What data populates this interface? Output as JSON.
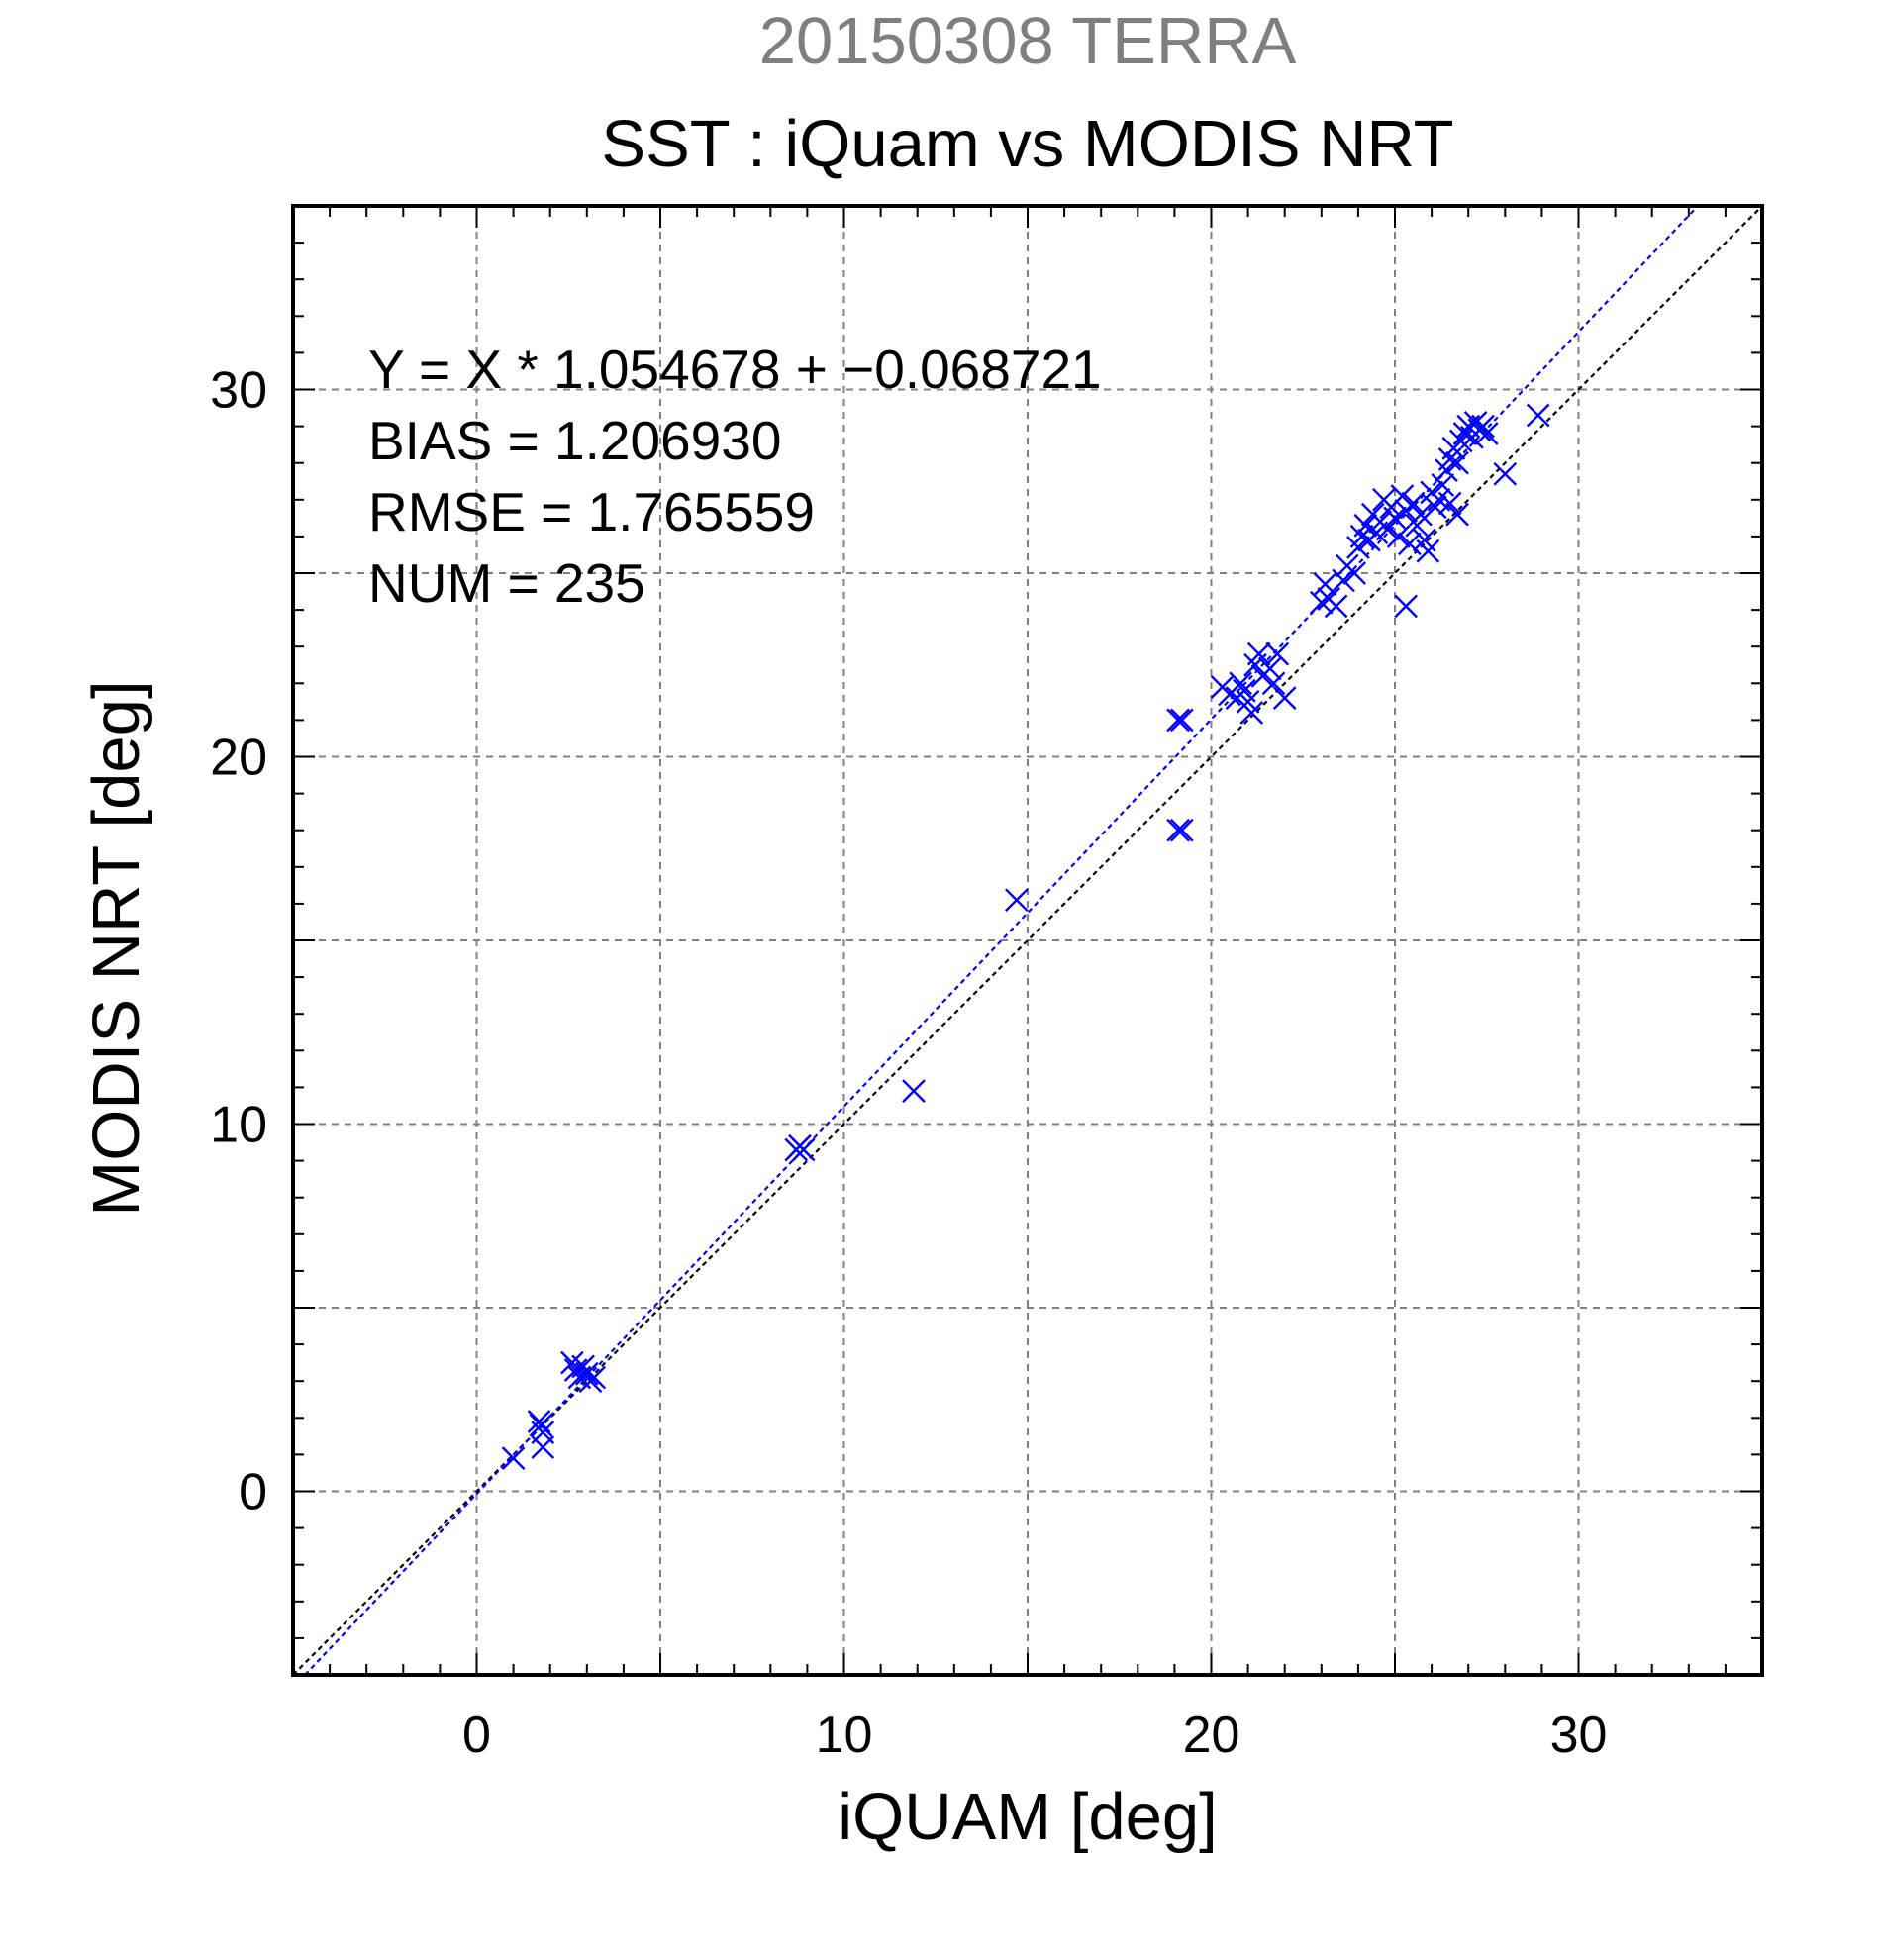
{
  "chart_data": {
    "type": "scatter",
    "suptitle": "20150308 TERRA",
    "title": "SST : iQuam vs MODIS NRT",
    "xlabel": "iQUAM [deg]",
    "ylabel": "MODIS NRT [deg]",
    "xlim": [
      -5,
      35
    ],
    "ylim": [
      -5,
      35
    ],
    "xticks": [
      0,
      10,
      20,
      30
    ],
    "yticks": [
      0,
      10,
      20,
      30
    ],
    "xtick_labels": [
      "0",
      "10",
      "20",
      "30"
    ],
    "ytick_labels": [
      "0",
      "10",
      "20",
      "30"
    ],
    "grid": true,
    "grid_step": 5,
    "minor_tick_step": 1,
    "annotations": [
      "Y = X * 1.054678 + −0.068721",
      "BIAS = 1.206930",
      "RMSE = 1.765559",
      "NUM = 235"
    ],
    "fit_line": {
      "slope": 1.054678,
      "intercept": -0.068721,
      "color": "#0000ff"
    },
    "identity_line": {
      "slope": 1,
      "intercept": 0,
      "color": "#000000"
    },
    "marker": "x",
    "marker_color": "#0000ff",
    "series": [
      {
        "points": [
          [
            1.0,
            0.9
          ],
          [
            1.7,
            1.9
          ],
          [
            1.75,
            1.8
          ],
          [
            1.8,
            1.6
          ],
          [
            1.8,
            1.2
          ],
          [
            2.6,
            3.5
          ],
          [
            2.7,
            3.3
          ],
          [
            2.8,
            3.1
          ],
          [
            2.9,
            3.4
          ],
          [
            3.0,
            3.2
          ],
          [
            3.1,
            3.0
          ],
          [
            3.2,
            3.1
          ],
          [
            8.7,
            9.3
          ],
          [
            8.8,
            9.4
          ],
          [
            8.9,
            9.3
          ],
          [
            11.9,
            10.9
          ],
          [
            14.7,
            16.1
          ],
          [
            19.1,
            21.0
          ],
          [
            19.2,
            21.0
          ],
          [
            19.1,
            18.0
          ],
          [
            19.2,
            18.0
          ],
          [
            20.3,
            21.9
          ],
          [
            20.5,
            21.7
          ],
          [
            20.7,
            21.6
          ],
          [
            20.8,
            22.0
          ],
          [
            20.9,
            21.8
          ],
          [
            21.0,
            21.5
          ],
          [
            21.1,
            21.2
          ],
          [
            21.2,
            22.5
          ],
          [
            21.3,
            22.8
          ],
          [
            21.4,
            22.2
          ],
          [
            21.6,
            22.4
          ],
          [
            21.7,
            22.0
          ],
          [
            21.8,
            22.8
          ],
          [
            22.0,
            21.6
          ],
          [
            23.0,
            24.2
          ],
          [
            23.1,
            24.7
          ],
          [
            23.2,
            24.3
          ],
          [
            23.4,
            24.1
          ],
          [
            23.6,
            24.8
          ],
          [
            23.7,
            25.2
          ],
          [
            23.9,
            25.0
          ],
          [
            24.0,
            25.7
          ],
          [
            24.1,
            26.0
          ],
          [
            24.2,
            26.3
          ],
          [
            24.3,
            25.9
          ],
          [
            24.4,
            26.6
          ],
          [
            24.5,
            26.1
          ],
          [
            24.6,
            26.4
          ],
          [
            24.7,
            27.0
          ],
          [
            24.8,
            26.2
          ],
          [
            24.9,
            26.8
          ],
          [
            25.0,
            26.5
          ],
          [
            25.1,
            26.0
          ],
          [
            25.2,
            27.1
          ],
          [
            25.3,
            26.7
          ],
          [
            25.4,
            25.8
          ],
          [
            25.5,
            26.9
          ],
          [
            25.6,
            26.3
          ],
          [
            25.7,
            26.6
          ],
          [
            25.8,
            25.9
          ],
          [
            25.9,
            25.6
          ],
          [
            26.0,
            27.2
          ],
          [
            26.1,
            26.8
          ],
          [
            26.2,
            27.0
          ],
          [
            26.3,
            27.4
          ],
          [
            26.4,
            27.8
          ],
          [
            26.5,
            28.1
          ],
          [
            26.6,
            28.4
          ],
          [
            26.7,
            28.0
          ],
          [
            26.8,
            28.6
          ],
          [
            26.9,
            28.8
          ],
          [
            27.0,
            29.0
          ],
          [
            27.1,
            28.7
          ],
          [
            27.2,
            29.1
          ],
          [
            27.3,
            28.9
          ],
          [
            27.4,
            29.0
          ],
          [
            27.5,
            28.8
          ],
          [
            26.5,
            26.9
          ],
          [
            26.7,
            26.6
          ],
          [
            25.3,
            24.1
          ],
          [
            28.0,
            27.7
          ],
          [
            28.9,
            29.3
          ]
        ]
      }
    ]
  }
}
